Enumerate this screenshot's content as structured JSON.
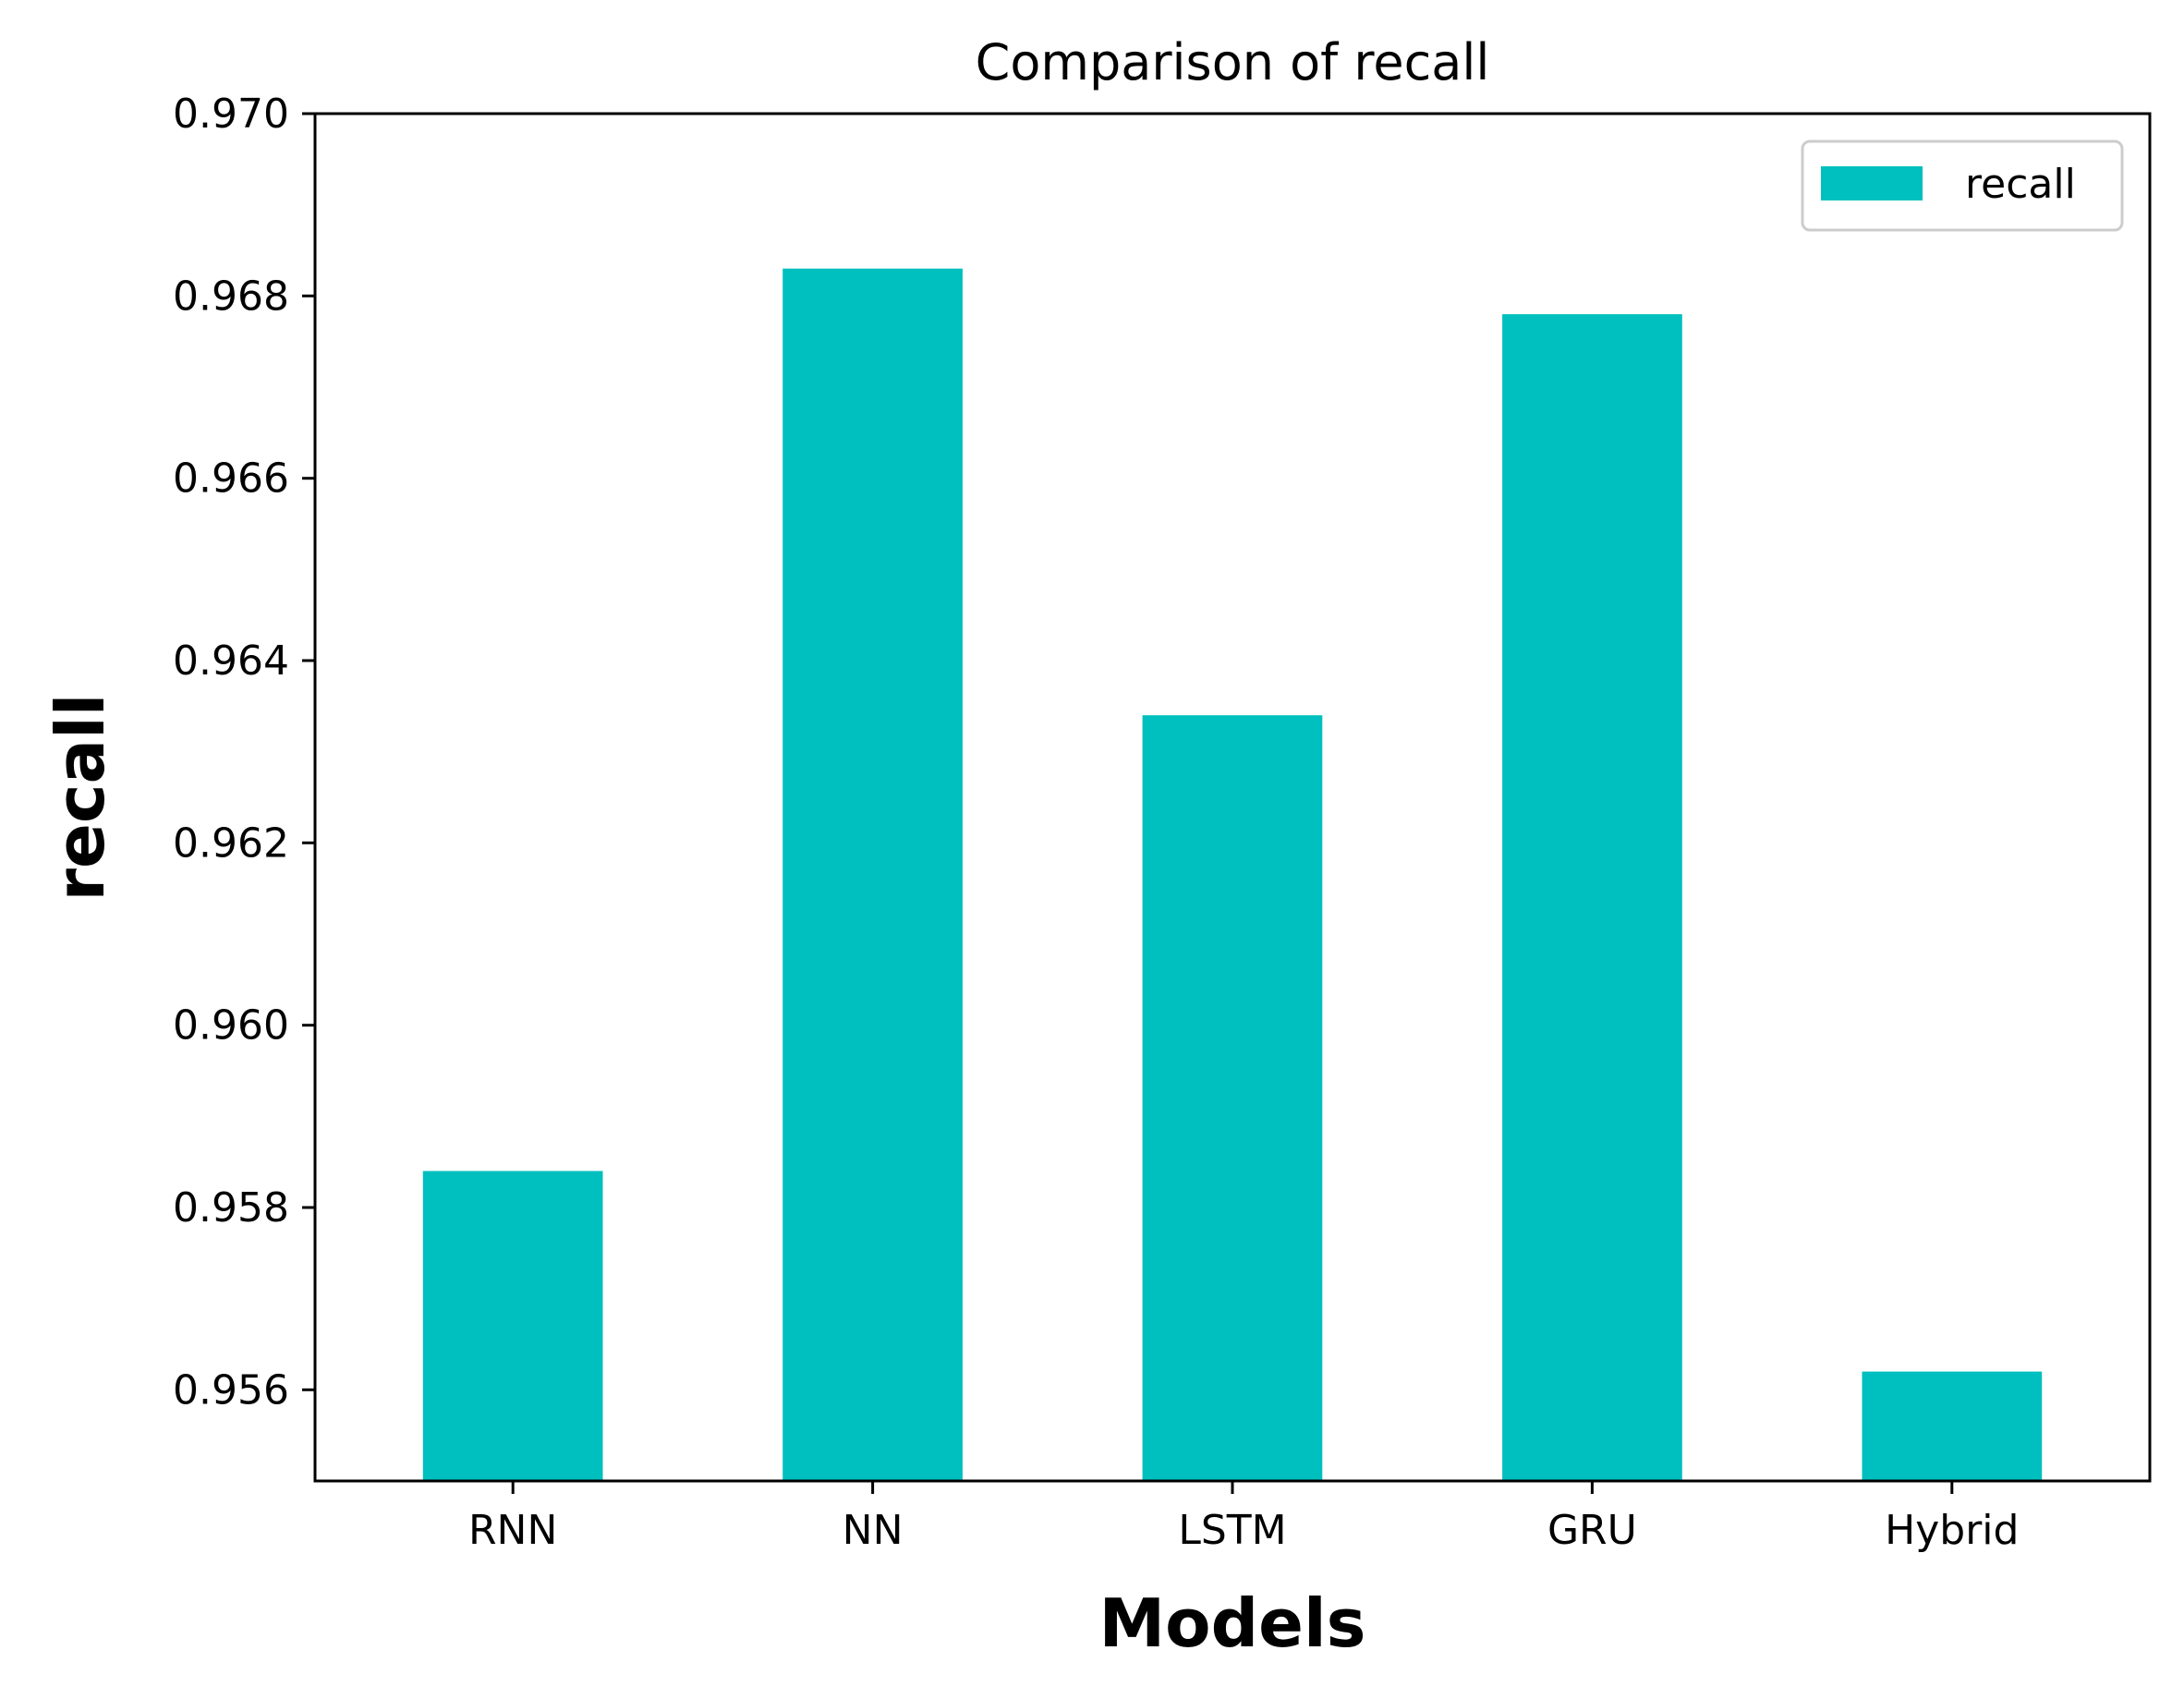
{
  "chart_data": {
    "type": "bar",
    "title": "Comparison of recall",
    "xlabel": "Models",
    "ylabel": "recall",
    "categories": [
      "RNN",
      "NN",
      "LSTM",
      "GRU",
      "Hybrid"
    ],
    "series": [
      {
        "name": "recall",
        "values": [
          0.9584,
          0.9683,
          0.9634,
          0.9678,
          0.9562
        ]
      }
    ],
    "ylim": [
      0.955,
      0.97
    ],
    "yticks": [
      0.956,
      0.958,
      0.96,
      0.962,
      0.964,
      0.966,
      0.968,
      0.97
    ],
    "ytick_labels": [
      "0.956",
      "0.958",
      "0.960",
      "0.962",
      "0.964",
      "0.966",
      "0.968",
      "0.970"
    ],
    "grid": false,
    "legend_position": "top-right",
    "colors": {
      "bar": "#00bfbf",
      "axes": "#000000"
    }
  }
}
